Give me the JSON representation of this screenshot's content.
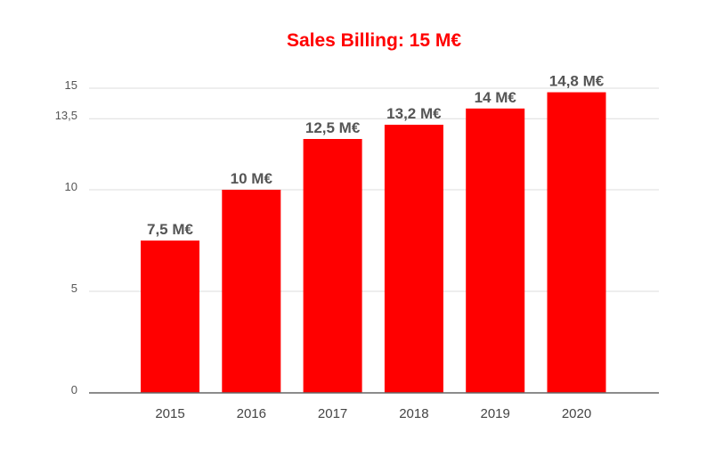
{
  "chart_data": {
    "type": "bar",
    "title": "Sales Billing: 15 M€",
    "xlabel": "",
    "ylabel": "",
    "categories": [
      "2015",
      "2016",
      "2017",
      "2018",
      "2019",
      "2020"
    ],
    "values": [
      7.5,
      10,
      12.5,
      13.2,
      14,
      14.8
    ],
    "data_labels": [
      "7,5 M€",
      "10 M€",
      "12,5 M€",
      "13,2 M€",
      "14 M€",
      "14,8 M€"
    ],
    "y_ticks": [
      0,
      5,
      10,
      13.5,
      15
    ],
    "y_tick_labels": [
      "0",
      "5",
      "10",
      "13,5",
      "15"
    ],
    "grid": true,
    "legend": "none",
    "colors": {
      "bar": "#ff0000",
      "title": "#ff0000",
      "gridline": "#dddddd",
      "axis": "#666666"
    }
  }
}
